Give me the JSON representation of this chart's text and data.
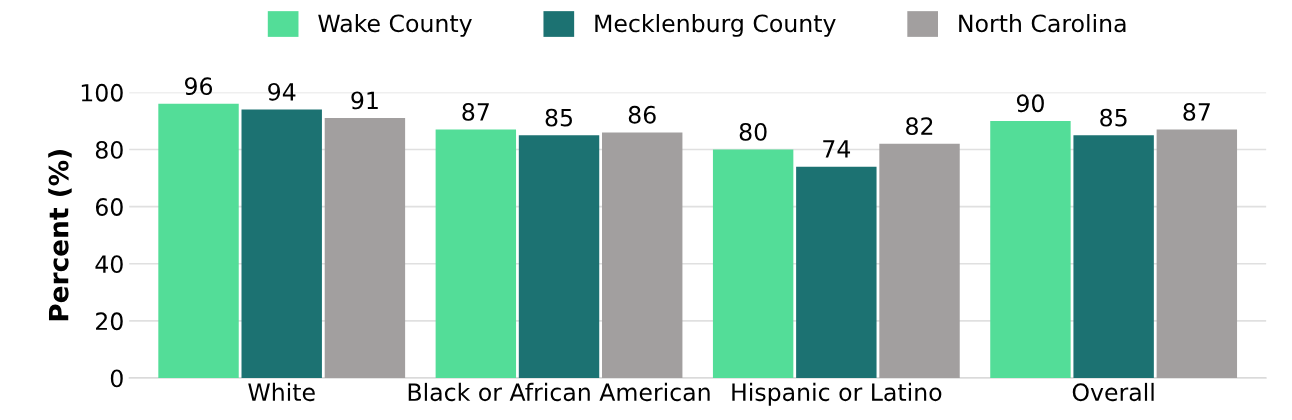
{
  "chart_data": {
    "type": "bar",
    "ylabel": "Percent (%)",
    "categories": [
      "White",
      "Black or African American",
      "Hispanic or Latino",
      "Overall"
    ],
    "series": [
      {
        "name": "Wake County",
        "color": "#53dd98",
        "values": [
          96,
          87,
          80,
          90
        ]
      },
      {
        "name": "Mecklenburg County",
        "color": "#1c7272",
        "values": [
          94,
          85,
          74,
          85
        ]
      },
      {
        "name": "North Carolina",
        "color": "#a29f9f",
        "values": [
          91,
          86,
          82,
          87
        ]
      }
    ],
    "ylim": [
      0,
      100
    ],
    "yticks": [
      0,
      20,
      40,
      60,
      80,
      100
    ],
    "grid": "y",
    "legend": "top",
    "data_labels": true
  }
}
